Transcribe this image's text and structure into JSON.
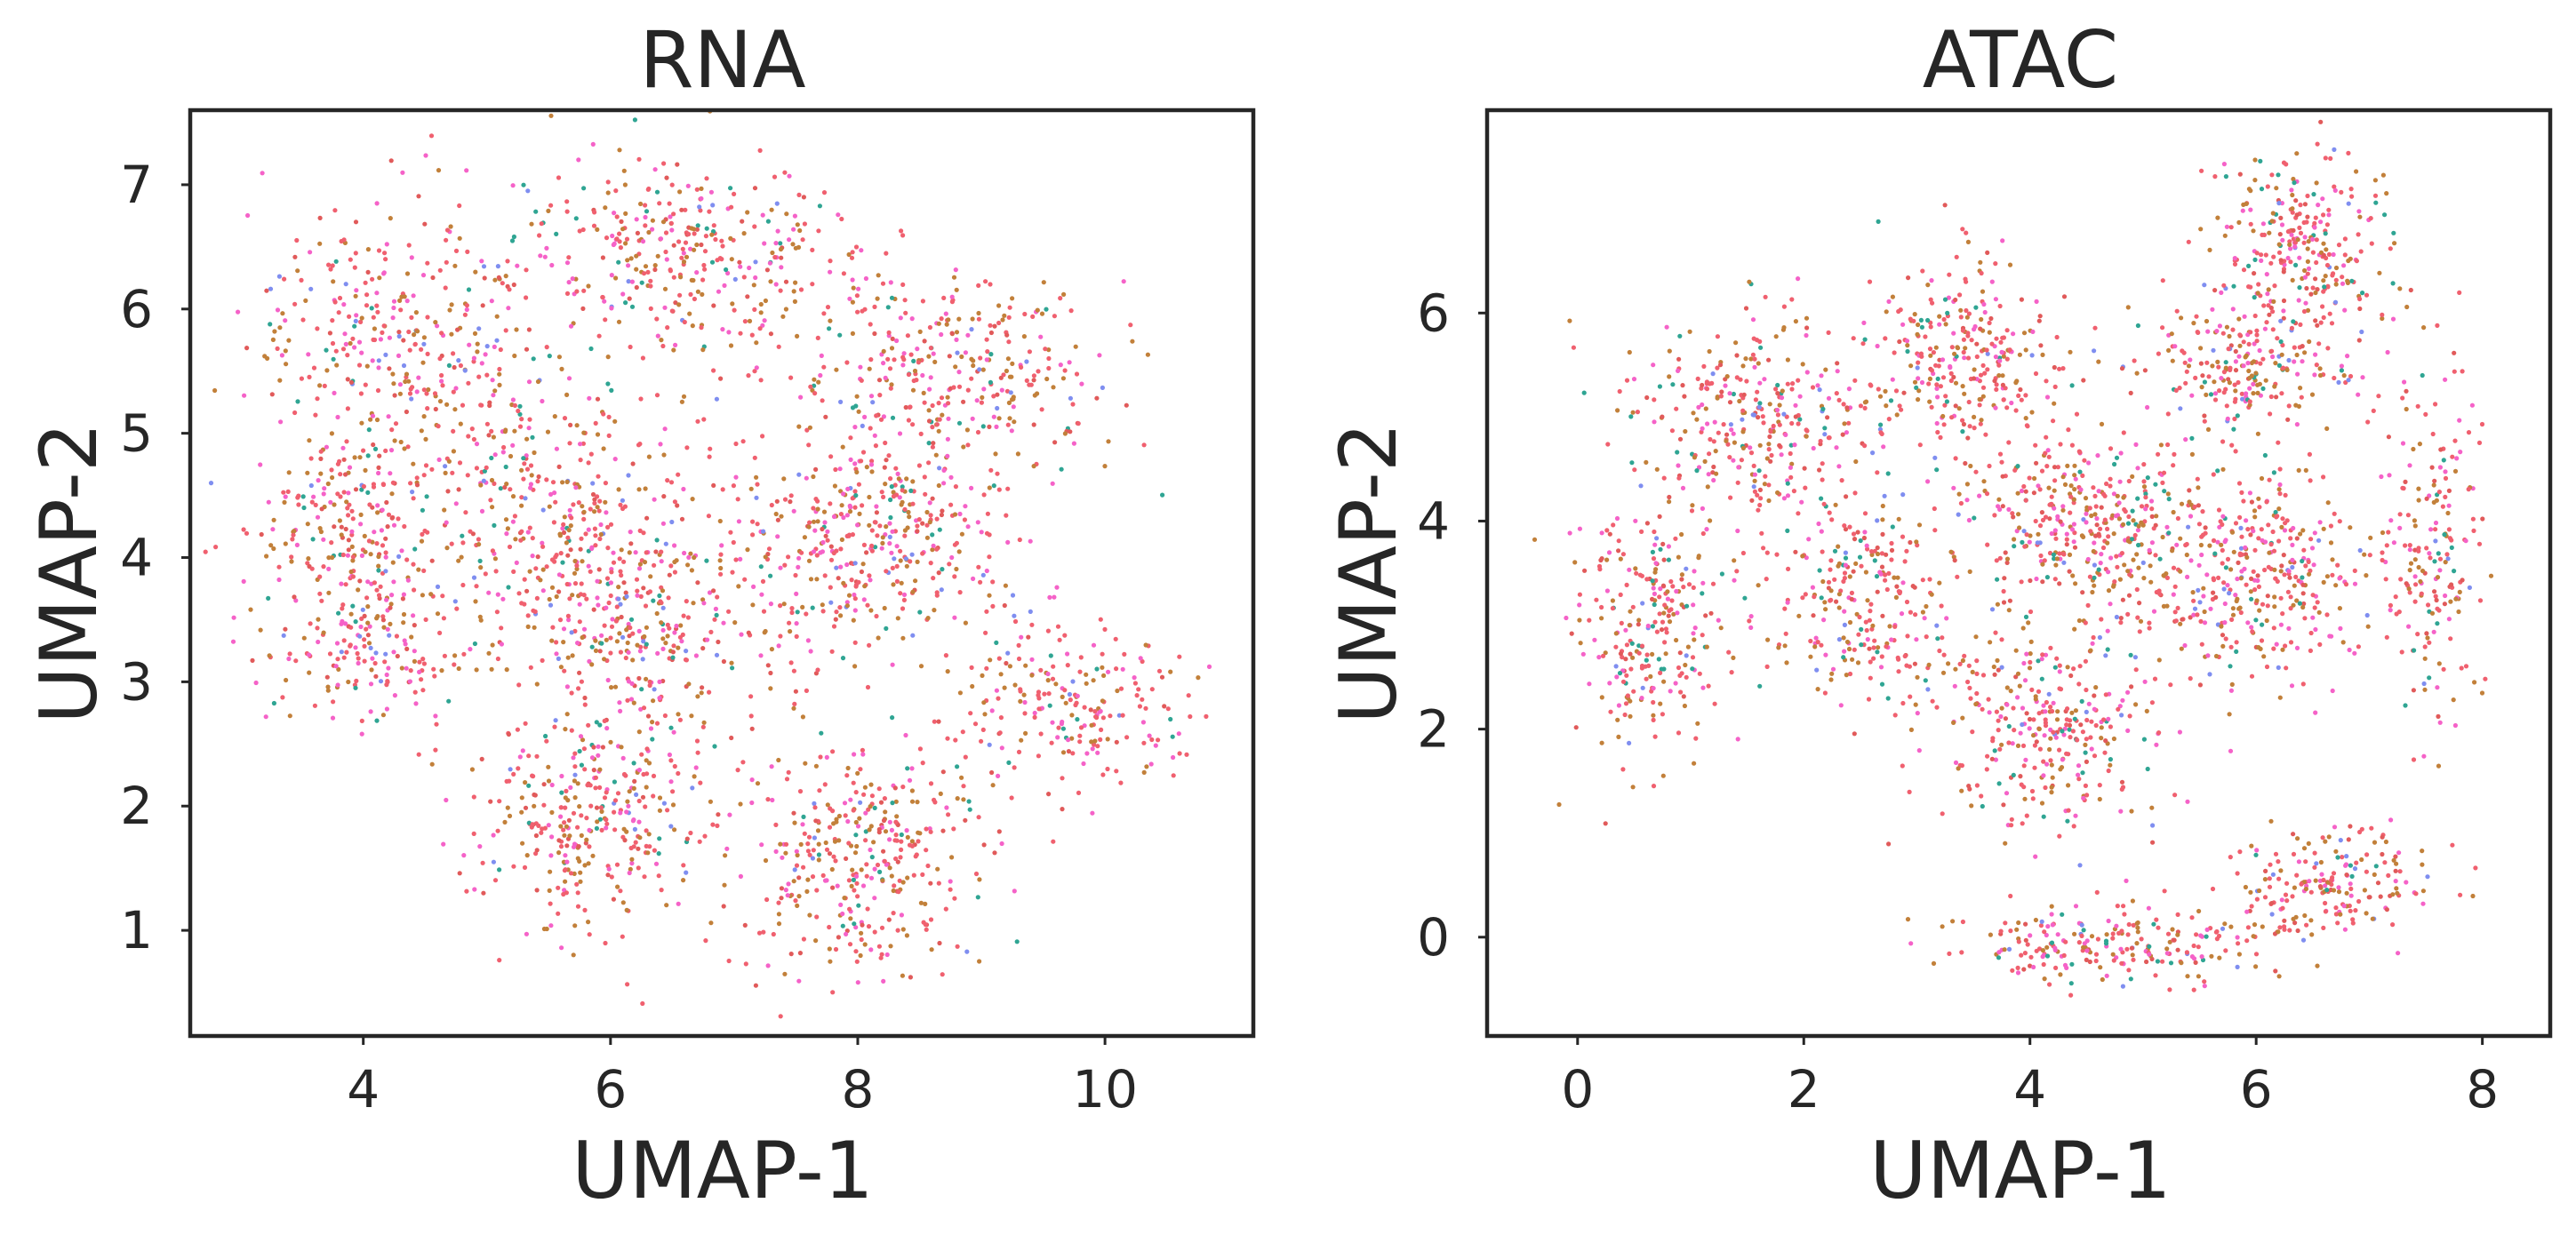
{
  "chart_data": [
    {
      "type": "scatter",
      "title": "RNA",
      "xlabel": "UMAP-1",
      "ylabel": "UMAP-2",
      "xlim": [
        2.6,
        11.2
      ],
      "ylim": [
        0.15,
        7.6
      ],
      "xticks": [
        4,
        6,
        8,
        10
      ],
      "yticks": [
        1,
        2,
        3,
        4,
        5,
        6,
        7
      ],
      "grid": false,
      "legend": "none",
      "point_colors": [
        "#f0606f",
        "#c2803a",
        "#f562c8",
        "#2fa593",
        "#7f8ef0",
        "#e15a5a"
      ],
      "clusters": [
        {
          "cx": 4.3,
          "cy": 5.8,
          "rx": 1.1,
          "ry": 1.0,
          "n": 330
        },
        {
          "cx": 6.6,
          "cy": 6.4,
          "rx": 1.3,
          "ry": 0.7,
          "n": 360
        },
        {
          "cx": 8.8,
          "cy": 5.5,
          "rx": 1.3,
          "ry": 0.8,
          "n": 320
        },
        {
          "cx": 3.9,
          "cy": 4.2,
          "rx": 0.8,
          "ry": 0.9,
          "n": 240
        },
        {
          "cx": 5.6,
          "cy": 4.3,
          "rx": 1.1,
          "ry": 1.0,
          "n": 380
        },
        {
          "cx": 4.0,
          "cy": 3.3,
          "rx": 0.7,
          "ry": 0.6,
          "n": 150
        },
        {
          "cx": 6.3,
          "cy": 3.3,
          "rx": 0.9,
          "ry": 0.8,
          "n": 260
        },
        {
          "cx": 8.1,
          "cy": 4.1,
          "rx": 1.1,
          "ry": 0.9,
          "n": 420
        },
        {
          "cx": 9.7,
          "cy": 2.8,
          "rx": 0.9,
          "ry": 0.6,
          "n": 220
        },
        {
          "cx": 5.8,
          "cy": 1.9,
          "rx": 0.9,
          "ry": 0.75,
          "n": 330
        },
        {
          "cx": 8.0,
          "cy": 1.6,
          "rx": 0.85,
          "ry": 0.9,
          "n": 350
        }
      ]
    },
    {
      "type": "scatter",
      "title": "ATAC",
      "xlabel": "UMAP-1",
      "ylabel": "UMAP-2",
      "xlim": [
        -0.8,
        8.6
      ],
      "ylim": [
        -0.95,
        7.95
      ],
      "xticks": [
        0,
        2,
        4,
        6,
        8
      ],
      "yticks": [
        0,
        2,
        4,
        6
      ],
      "grid": false,
      "legend": "none",
      "point_colors": [
        "#f0606f",
        "#c2803a",
        "#f562c8",
        "#2fa593",
        "#7f8ef0",
        "#e15a5a"
      ],
      "clusters": [
        {
          "cx": 0.6,
          "cy": 3.0,
          "rx": 0.6,
          "ry": 1.2,
          "n": 260
        },
        {
          "cx": 1.6,
          "cy": 5.0,
          "rx": 1.0,
          "ry": 1.0,
          "n": 320
        },
        {
          "cx": 3.4,
          "cy": 5.5,
          "rx": 0.8,
          "ry": 0.9,
          "n": 300
        },
        {
          "cx": 2.5,
          "cy": 3.2,
          "rx": 0.9,
          "ry": 0.9,
          "n": 260
        },
        {
          "cx": 4.2,
          "cy": 2.0,
          "rx": 0.9,
          "ry": 1.0,
          "n": 320
        },
        {
          "cx": 4.5,
          "cy": 4.0,
          "rx": 0.9,
          "ry": 0.8,
          "n": 340
        },
        {
          "cx": 6.0,
          "cy": 3.5,
          "rx": 1.0,
          "ry": 0.9,
          "n": 380
        },
        {
          "cx": 6.4,
          "cy": 6.7,
          "rx": 0.7,
          "ry": 0.7,
          "n": 260
        },
        {
          "cx": 5.9,
          "cy": 5.5,
          "rx": 0.9,
          "ry": 0.6,
          "n": 240
        },
        {
          "cx": 7.6,
          "cy": 3.7,
          "rx": 0.4,
          "ry": 1.5,
          "n": 180
        },
        {
          "cx": 4.7,
          "cy": -0.1,
          "rx": 1.2,
          "ry": 0.35,
          "n": 220
        },
        {
          "cx": 6.6,
          "cy": 0.5,
          "rx": 0.9,
          "ry": 0.5,
          "n": 200
        }
      ]
    }
  ]
}
